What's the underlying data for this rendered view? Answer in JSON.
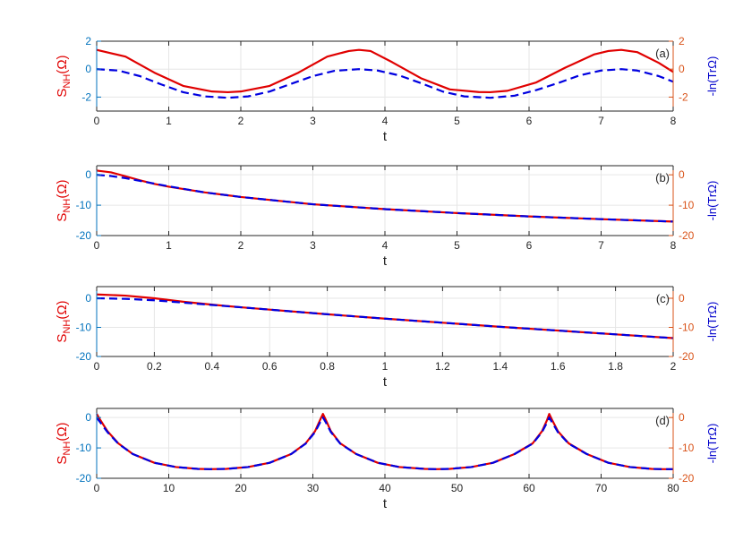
{
  "colors": {
    "left_axis": "#D95319",
    "right_axis": "#0072BD",
    "s_nh_curve": "#E00000",
    "ln_curve": "#0000E0",
    "grid": "#E6E6E6",
    "frame": "#262626"
  },
  "chart_data": [
    {
      "type": "line",
      "panel_label": "(a)",
      "xlabel": "t",
      "ylabel_left": {
        "base": "S",
        "sub": "NH",
        "arg": "(Ω)"
      },
      "ylabel_right": "-ln(TrΩ)",
      "xlim": [
        0,
        8
      ],
      "ylim_left": [
        -3,
        2
      ],
      "ylim_right": [
        -3,
        2
      ],
      "x_ticks": [
        0,
        1,
        2,
        3,
        4,
        5,
        6,
        7,
        8
      ],
      "y_ticks_left": [
        -2,
        0,
        2
      ],
      "y_ticks_right": [
        -2,
        0,
        2
      ],
      "grid": true,
      "series": [
        {
          "style": "solid",
          "x": [
            0,
            0.4,
            0.8,
            1.2,
            1.6,
            1.82,
            2.0,
            2.4,
            2.8,
            3.2,
            3.5,
            3.64,
            3.8,
            4.1,
            4.5,
            4.9,
            5.3,
            5.46,
            5.7,
            6.1,
            6.5,
            6.9,
            7.1,
            7.28,
            7.5,
            7.8,
            8.0
          ],
          "y": [
            1.38,
            0.9,
            -0.25,
            -1.2,
            -1.6,
            -1.65,
            -1.6,
            -1.2,
            -0.25,
            0.9,
            1.3,
            1.38,
            1.3,
            0.5,
            -0.65,
            -1.45,
            -1.64,
            -1.65,
            -1.55,
            -0.95,
            0.1,
            1.05,
            1.3,
            1.38,
            1.22,
            0.45,
            -0.2
          ]
        },
        {
          "style": "dashed",
          "x": [
            0,
            0.3,
            0.6,
            0.9,
            1.2,
            1.5,
            1.82,
            2.1,
            2.4,
            2.7,
            3.0,
            3.3,
            3.64,
            3.9,
            4.2,
            4.5,
            4.8,
            5.1,
            5.46,
            5.8,
            6.1,
            6.4,
            6.7,
            7.0,
            7.28,
            7.5,
            7.8,
            8.0
          ],
          "y": [
            0,
            -0.1,
            -0.5,
            -1.1,
            -1.65,
            -1.95,
            -2.05,
            -1.95,
            -1.6,
            -1.05,
            -0.5,
            -0.12,
            0,
            -0.1,
            -0.45,
            -1.0,
            -1.6,
            -1.95,
            -2.05,
            -1.9,
            -1.5,
            -1.0,
            -0.45,
            -0.1,
            0,
            -0.1,
            -0.5,
            -0.9
          ]
        }
      ]
    },
    {
      "type": "line",
      "panel_label": "(b)",
      "xlabel": "t",
      "ylabel_left": {
        "base": "S",
        "sub": "NH",
        "arg": "(Ω)"
      },
      "ylabel_right": "-ln(TrΩ)",
      "xlim": [
        0,
        8
      ],
      "ylim_left": [
        -20,
        3
      ],
      "ylim_right": [
        -20,
        3
      ],
      "x_ticks": [
        0,
        1,
        2,
        3,
        4,
        5,
        6,
        7,
        8
      ],
      "y_ticks_left": [
        -20,
        -10,
        0
      ],
      "y_ticks_right": [
        -20,
        -10,
        0
      ],
      "grid": true,
      "series": [
        {
          "style": "solid",
          "x": [
            0,
            0.2,
            0.4,
            0.6,
            0.8,
            1.0,
            1.5,
            2,
            3,
            4,
            5,
            6,
            7,
            8
          ],
          "y": [
            1.4,
            0.8,
            -0.5,
            -1.8,
            -3.0,
            -3.9,
            -5.8,
            -7.3,
            -9.7,
            -11.3,
            -12.6,
            -13.7,
            -14.6,
            -15.4
          ]
        },
        {
          "style": "dashed",
          "x": [
            0,
            0.2,
            0.4,
            0.6,
            0.8,
            1.0,
            1.5,
            2,
            3,
            4,
            5,
            6,
            7,
            8
          ],
          "y": [
            0,
            -0.4,
            -1.1,
            -2.0,
            -2.9,
            -3.8,
            -5.8,
            -7.3,
            -9.7,
            -11.3,
            -12.6,
            -13.7,
            -14.6,
            -15.4
          ]
        }
      ]
    },
    {
      "type": "line",
      "panel_label": "(c)",
      "xlabel": "t",
      "ylabel_left": {
        "base": "S",
        "sub": "NH",
        "arg": "(Ω)"
      },
      "ylabel_right": "-ln(TrΩ)",
      "xlim": [
        0,
        2
      ],
      "ylim_left": [
        -20,
        4
      ],
      "ylim_right": [
        -20,
        4
      ],
      "x_ticks": [
        0,
        0.2,
        0.4,
        0.6,
        0.8,
        1,
        1.2,
        1.4,
        1.6,
        1.8,
        2
      ],
      "y_ticks_left": [
        -20,
        -10,
        0
      ],
      "y_ticks_right": [
        -20,
        -10,
        0
      ],
      "grid": true,
      "series": [
        {
          "style": "solid",
          "x": [
            0,
            0.1,
            0.2,
            0.3,
            0.4,
            0.5,
            0.6,
            0.8,
            1.0,
            1.2,
            1.4,
            1.6,
            1.8,
            2.0
          ],
          "y": [
            1.3,
            0.9,
            0.0,
            -1.2,
            -2.2,
            -3.1,
            -3.9,
            -5.5,
            -7.0,
            -8.4,
            -9.8,
            -11.1,
            -12.4,
            -13.7
          ]
        },
        {
          "style": "dashed",
          "x": [
            0,
            0.1,
            0.2,
            0.3,
            0.4,
            0.5,
            0.6,
            0.8,
            1.0,
            1.2,
            1.4,
            1.6,
            1.8,
            2.0
          ],
          "y": [
            0,
            -0.2,
            -0.7,
            -1.5,
            -2.3,
            -3.1,
            -3.9,
            -5.5,
            -7.0,
            -8.4,
            -9.8,
            -11.1,
            -12.4,
            -13.7
          ]
        }
      ]
    },
    {
      "type": "line",
      "panel_label": "(d)",
      "xlabel": "t",
      "ylabel_left": {
        "base": "S",
        "sub": "NH",
        "arg": "(Ω)"
      },
      "ylabel_right": "-ln(TrΩ)",
      "xlim": [
        0,
        80
      ],
      "ylim_left": [
        -20,
        3
      ],
      "ylim_right": [
        -20,
        3
      ],
      "x_ticks": [
        0,
        10,
        20,
        30,
        40,
        50,
        60,
        70,
        80
      ],
      "y_ticks_left": [
        -20,
        -10,
        0
      ],
      "y_ticks_right": [
        -20,
        -10,
        0
      ],
      "grid": true,
      "series": [
        {
          "style": "solid",
          "x": [
            0,
            0.5,
            1.5,
            3,
            5,
            8,
            11,
            14,
            15.7,
            18,
            21,
            24,
            27,
            29,
            30.3,
            31,
            31.4,
            31.8,
            32.5,
            33.8,
            36,
            39,
            42,
            45.5,
            47.1,
            49,
            52,
            55,
            58,
            60.5,
            61.8,
            62.5,
            62.8,
            63.2,
            64,
            65.5,
            68,
            71,
            74,
            77,
            78.5,
            80
          ],
          "y": [
            1.2,
            -0.8,
            -4.5,
            -8.5,
            -12,
            -14.9,
            -16.3,
            -16.9,
            -17.0,
            -16.9,
            -16.3,
            -14.9,
            -12.0,
            -8.5,
            -4.5,
            -0.8,
            1.2,
            -0.8,
            -4.5,
            -8.5,
            -12.0,
            -14.9,
            -16.3,
            -16.9,
            -17.0,
            -16.9,
            -16.3,
            -14.9,
            -12.0,
            -8.5,
            -4.5,
            -0.8,
            1.2,
            -0.8,
            -4.5,
            -8.5,
            -12.0,
            -14.9,
            -16.3,
            -16.9,
            -17.0,
            -17.0
          ]
        },
        {
          "style": "dashed",
          "x": [
            0,
            0.5,
            1.5,
            3,
            5,
            8,
            11,
            14,
            15.7,
            18,
            21,
            24,
            27,
            29,
            30.3,
            31,
            31.4,
            31.8,
            32.5,
            33.8,
            36,
            39,
            42,
            45.5,
            47.1,
            49,
            52,
            55,
            58,
            60.5,
            61.8,
            62.5,
            62.8,
            63.2,
            64,
            65.5,
            68,
            71,
            74,
            77,
            78.5,
            80
          ],
          "y": [
            0,
            -1.6,
            -4.8,
            -8.6,
            -12,
            -14.9,
            -16.3,
            -16.9,
            -17.0,
            -16.9,
            -16.3,
            -14.9,
            -12.0,
            -8.6,
            -4.8,
            -1.6,
            0,
            -1.6,
            -4.8,
            -8.6,
            -12.0,
            -14.9,
            -16.3,
            -16.9,
            -17.0,
            -16.9,
            -16.3,
            -14.9,
            -12.0,
            -8.6,
            -4.8,
            -1.6,
            0,
            -1.6,
            -4.8,
            -8.6,
            -12.0,
            -14.9,
            -16.3,
            -16.9,
            -17.0,
            -17.0
          ]
        }
      ]
    }
  ]
}
